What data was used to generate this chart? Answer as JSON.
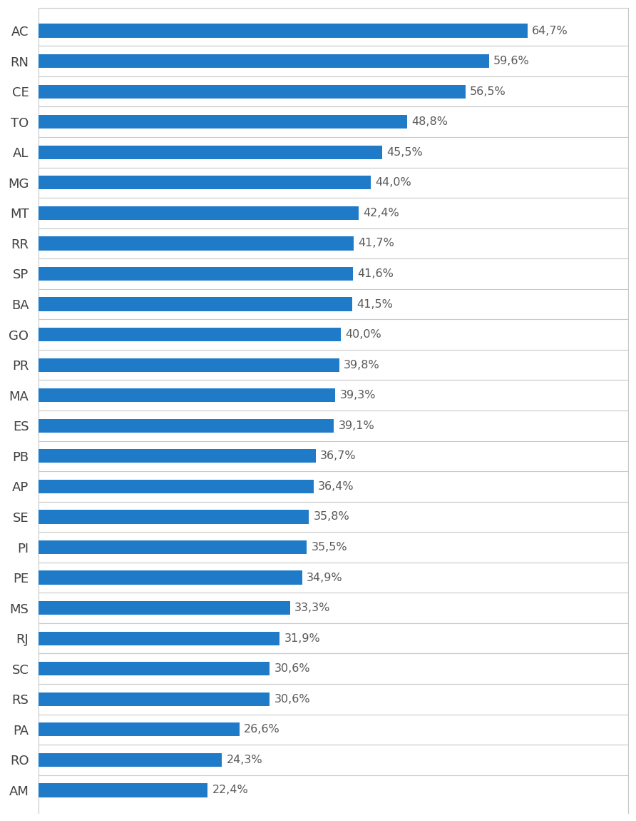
{
  "categories": [
    "AC",
    "RN",
    "CE",
    "TO",
    "AL",
    "MG",
    "MT",
    "RR",
    "SP",
    "BA",
    "GO",
    "PR",
    "MA",
    "ES",
    "PB",
    "AP",
    "SE",
    "PI",
    "PE",
    "MS",
    "RJ",
    "SC",
    "RS",
    "PA",
    "RO",
    "AM"
  ],
  "values": [
    64.7,
    59.6,
    56.5,
    48.8,
    45.5,
    44.0,
    42.4,
    41.7,
    41.6,
    41.5,
    40.0,
    39.8,
    39.3,
    39.1,
    36.7,
    36.4,
    35.8,
    35.5,
    34.9,
    33.3,
    31.9,
    30.6,
    30.6,
    26.6,
    24.3,
    22.4
  ],
  "labels": [
    "64,7%",
    "59,6%",
    "56,5%",
    "48,8%",
    "45,5%",
    "44,0%",
    "42,4%",
    "41,7%",
    "41,6%",
    "41,5%",
    "40,0%",
    "39,8%",
    "39,3%",
    "39,1%",
    "36,7%",
    "36,4%",
    "35,8%",
    "35,5%",
    "34,9%",
    "33,3%",
    "31,9%",
    "30,6%",
    "30,6%",
    "26,6%",
    "24,3%",
    "22,4%"
  ],
  "bar_color": "#1F7BC8",
  "background_color": "#FFFFFF",
  "label_color": "#595959",
  "ytick_color": "#404040",
  "bar_height": 0.45,
  "xlim": [
    0,
    78
  ],
  "label_fontsize": 11.5,
  "ytick_fontsize": 13,
  "grid_color": "#C8C8C8",
  "figsize": [
    8.92,
    11.5
  ],
  "dpi": 100
}
